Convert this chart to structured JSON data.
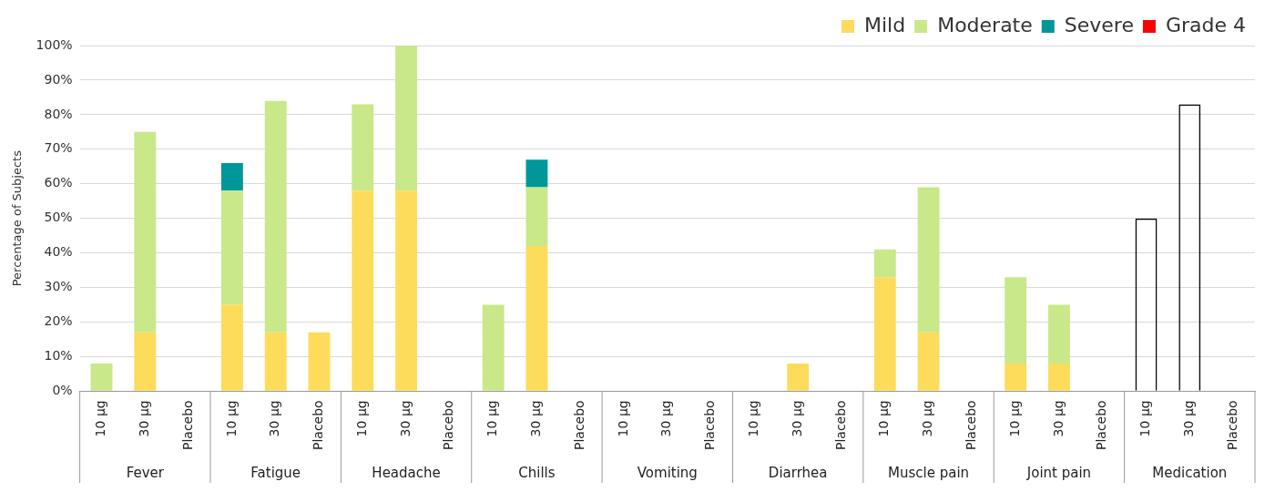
{
  "chart_data": {
    "type": "bar",
    "stacked": true,
    "ylabel": "Percentage of Subjects",
    "categories": [
      "10 µg",
      "30 µg",
      "Placebo",
      "10 µg",
      "30 µg",
      "Placebo",
      "10 µg",
      "30 µg",
      "Placebo",
      "10 µg",
      "30 µg",
      "Placebo",
      "10 µg",
      "30 µg",
      "Placebo",
      "10 µg",
      "30 µg",
      "Placebo",
      "10 µg",
      "30 µg",
      "Placebo",
      "10 µg",
      "30 µg",
      "Placebo",
      "10 µg",
      "30 µg",
      "Placebo"
    ],
    "series": [
      {
        "name": "Mild",
        "color": "#fcdc5a",
        "values": [
          0,
          17,
          0,
          25,
          17,
          17,
          58,
          58,
          0,
          0,
          42,
          0,
          0,
          0,
          0,
          0,
          8,
          0,
          33,
          17,
          0,
          8,
          8,
          0,
          null,
          null,
          null
        ]
      },
      {
        "name": "Moderate",
        "color": "#c8e88a",
        "values": [
          8,
          58,
          0,
          33,
          67,
          0,
          25,
          42,
          0,
          25,
          17,
          0,
          0,
          0,
          0,
          0,
          0,
          0,
          8,
          42,
          0,
          25,
          17,
          0,
          null,
          null,
          null
        ]
      },
      {
        "name": "Severe",
        "color": "#00979a",
        "values": [
          0,
          0,
          0,
          8,
          0,
          0,
          0,
          0,
          0,
          0,
          8,
          0,
          0,
          0,
          0,
          0,
          0,
          0,
          0,
          0,
          0,
          0,
          0,
          0,
          null,
          null,
          null
        ]
      },
      {
        "name": "Grade 4",
        "color": "#ff0000",
        "values": [
          0,
          0,
          0,
          0,
          0,
          0,
          0,
          0,
          0,
          0,
          0,
          0,
          0,
          0,
          0,
          0,
          0,
          0,
          0,
          0,
          0,
          0,
          0,
          0,
          null,
          null,
          null
        ]
      },
      {
        "color": "#000000",
        "values": [
          null,
          null,
          null,
          null,
          null,
          null,
          null,
          null,
          null,
          null,
          null,
          null,
          null,
          null,
          null,
          null,
          null,
          null,
          null,
          null,
          null,
          null,
          null,
          null,
          50,
          83,
          0
        ]
      }
    ],
    "ylim": [
      0,
      100
    ],
    "yticks": [
      {
        "value": 0,
        "label": "0%"
      },
      {
        "value": 10,
        "label": "10%"
      },
      {
        "value": 20,
        "label": "20%"
      },
      {
        "value": 30,
        "label": "30%"
      },
      {
        "value": 40,
        "label": "40%"
      },
      {
        "value": 50,
        "label": "50%"
      },
      {
        "value": 60,
        "label": "60%"
      },
      {
        "value": 70,
        "label": "70%"
      },
      {
        "value": 80,
        "label": "80%"
      },
      {
        "value": 90,
        "label": "90%"
      },
      {
        "value": 100,
        "label": "100%"
      }
    ],
    "grid": "y",
    "legend": "top right",
    "annotations": [
      "Fever",
      "Fatigue",
      "Headache",
      "Chills",
      "Vomiting",
      "Diarrhea",
      "Muscle pain",
      "Joint pain",
      "Medication"
    ]
  }
}
